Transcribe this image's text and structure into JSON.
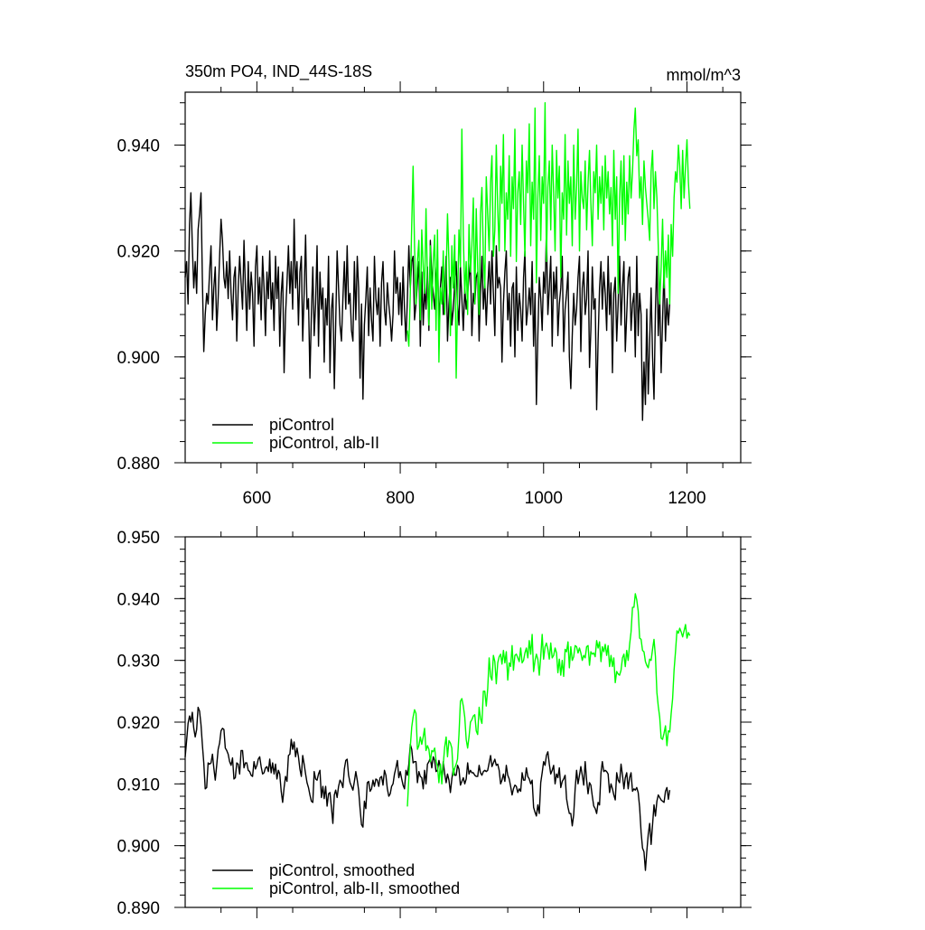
{
  "chart_data": [
    {
      "type": "line",
      "title": "350m PO4, IND_44S-18S",
      "units": "mmol/m^3",
      "xlabel": "",
      "ylabel": "",
      "xlim": [
        500,
        1275
      ],
      "ylim": [
        0.88,
        0.95
      ],
      "xticks": [
        600,
        800,
        1000,
        1200
      ],
      "xtick_labels": [
        "600",
        "800",
        "1000",
        "1200"
      ],
      "yticks": [
        0.88,
        0.9,
        0.92,
        0.94
      ],
      "ytick_labels": [
        "0.880",
        "0.900",
        "0.920",
        "0.940"
      ],
      "grid": false,
      "legend": "bottom-left",
      "series": [
        {
          "name": "piControl",
          "color": "#000000",
          "x_start": 500,
          "x_step": 2,
          "values": [
            0.915,
            0.918,
            0.91,
            0.925,
            0.931,
            0.921,
            0.913,
            0.918,
            0.912,
            0.924,
            0.927,
            0.931,
            0.915,
            0.901,
            0.908,
            0.912,
            0.91,
            0.916,
            0.921,
            0.907,
            0.913,
            0.917,
            0.905,
            0.911,
            0.919,
            0.926,
            0.922,
            0.915,
            0.913,
            0.918,
            0.911,
            0.92,
            0.912,
            0.907,
            0.915,
            0.917,
            0.903,
            0.913,
            0.919,
            0.914,
            0.909,
            0.922,
            0.913,
            0.905,
            0.918,
            0.909,
            0.916,
            0.912,
            0.902,
            0.917,
            0.921,
            0.91,
            0.915,
            0.907,
            0.919,
            0.913,
            0.904,
            0.916,
            0.911,
            0.92,
            0.909,
            0.914,
            0.905,
            0.919,
            0.911,
            0.917,
            0.902,
            0.912,
            0.916,
            0.897,
            0.908,
            0.914,
            0.921,
            0.912,
            0.918,
            0.909,
            0.926,
            0.913,
            0.918,
            0.906,
            0.916,
            0.919,
            0.903,
            0.912,
            0.923,
            0.909,
            0.911,
            0.896,
            0.908,
            0.917,
            0.904,
            0.91,
            0.921,
            0.902,
            0.916,
            0.909,
            0.913,
            0.899,
            0.911,
            0.906,
            0.919,
            0.897,
            0.909,
            0.912,
            0.894,
            0.906,
            0.92,
            0.913,
            0.906,
            0.903,
            0.911,
            0.918,
            0.909,
            0.921,
            0.91,
            0.912,
            0.905,
            0.903,
            0.918,
            0.907,
            0.919,
            0.913,
            0.896,
            0.91,
            0.892,
            0.906,
            0.911,
            0.917,
            0.904,
            0.913,
            0.907,
            0.903,
            0.919,
            0.911,
            0.908,
            0.913,
            0.902,
            0.914,
            0.918,
            0.909,
            0.906,
            0.914,
            0.91,
            0.907,
            0.903,
            0.908,
            0.92,
            0.912,
            0.915,
            0.908,
            0.914,
            0.906,
            0.917,
            0.909,
            0.903,
            0.911,
            0.921,
            0.913,
            0.918,
            0.919,
            0.907,
            0.91,
            0.914,
            0.918,
            0.902,
            0.916,
            0.906,
            0.913,
            0.909,
            0.917,
            0.905,
            0.922,
            0.915,
            0.912,
            0.909,
            0.914,
            0.919,
            0.906,
            0.913,
            0.917,
            0.908,
            0.911,
            0.919,
            0.903,
            0.91,
            0.915,
            0.906,
            0.909,
            0.914,
            0.918,
            0.91,
            0.906,
            0.917,
            0.911,
            0.905,
            0.913,
            0.909,
            0.912,
            0.915,
            0.918,
            0.904,
            0.912,
            0.91,
            0.915,
            0.916,
            0.903,
            0.912,
            0.919,
            0.909,
            0.914,
            0.906,
            0.913,
            0.918,
            0.91,
            0.92,
            0.912,
            0.904,
            0.921,
            0.913,
            0.915,
            0.913,
            0.899,
            0.91,
            0.916,
            0.92,
            0.907,
            0.912,
            0.902,
            0.913,
            0.914,
            0.9,
            0.917,
            0.905,
            0.912,
            0.909,
            0.903,
            0.915,
            0.92,
            0.906,
            0.909,
            0.913,
            0.908,
            0.918,
            0.902,
            0.912,
            0.891,
            0.904,
            0.915,
            0.911,
            0.905,
            0.916,
            0.912,
            0.924,
            0.908,
            0.913,
            0.919,
            0.902,
            0.916,
            0.911,
            0.917,
            0.904,
            0.91,
            0.913,
            0.919,
            0.901,
            0.909,
            0.912,
            0.916,
            0.9,
            0.894,
            0.904,
            0.912,
            0.906,
            0.909,
            0.915,
            0.919,
            0.901,
            0.913,
            0.916,
            0.908,
            0.911,
            0.92,
            0.898,
            0.905,
            0.917,
            0.909,
            0.911,
            0.89,
            0.903,
            0.913,
            0.918,
            0.909,
            0.916,
            0.912,
            0.905,
            0.919,
            0.908,
            0.914,
            0.897,
            0.912,
            0.915,
            0.903,
            0.91,
            0.919,
            0.906,
            0.913,
            0.918,
            0.901,
            0.908,
            0.915,
            0.917,
            0.905,
            0.91,
            0.912,
            0.9,
            0.919,
            0.904,
            0.912,
            0.908,
            0.888,
            0.899,
            0.891,
            0.909,
            0.893,
            0.903,
            0.913,
            0.9,
            0.892,
            0.909,
            0.919,
            0.904,
            0.912,
            0.897,
            0.907,
            0.917,
            0.903,
            0.911,
            0.906,
            0.91
          ]
        },
        {
          "name": "piControl, alb-II",
          "color": "#00ff00",
          "x_start": 810,
          "x_step": 2,
          "values": [
            0.905,
            0.902,
            0.912,
            0.925,
            0.936,
            0.921,
            0.91,
            0.918,
            0.922,
            0.907,
            0.924,
            0.917,
            0.912,
            0.928,
            0.914,
            0.906,
            0.921,
            0.909,
            0.918,
            0.923,
            0.905,
            0.924,
            0.899,
            0.913,
            0.91,
            0.92,
            0.908,
            0.915,
            0.927,
            0.918,
            0.904,
            0.921,
            0.913,
            0.923,
            0.896,
            0.91,
            0.924,
            0.917,
            0.943,
            0.923,
            0.912,
            0.918,
            0.908,
            0.925,
            0.916,
            0.921,
            0.93,
            0.91,
            0.928,
            0.917,
            0.908,
            0.927,
            0.932,
            0.919,
            0.913,
            0.934,
            0.927,
            0.92,
            0.933,
            0.938,
            0.919,
            0.924,
            0.94,
            0.928,
            0.92,
            0.936,
            0.929,
            0.942,
            0.92,
            0.931,
            0.926,
            0.938,
            0.919,
            0.934,
            0.928,
            0.943,
            0.918,
            0.931,
            0.935,
            0.925,
            0.94,
            0.929,
            0.919,
            0.937,
            0.931,
            0.944,
            0.921,
            0.933,
            0.926,
            0.947,
            0.914,
            0.93,
            0.938,
            0.922,
            0.934,
            0.929,
            0.948,
            0.918,
            0.932,
            0.937,
            0.924,
            0.94,
            0.931,
            0.92,
            0.939,
            0.93,
            0.936,
            0.915,
            0.931,
            0.926,
            0.942,
            0.923,
            0.937,
            0.929,
            0.934,
            0.921,
            0.94,
            0.926,
            0.932,
            0.943,
            0.92,
            0.935,
            0.93,
            0.928,
            0.937,
            0.924,
            0.933,
            0.939,
            0.929,
            0.921,
            0.935,
            0.931,
            0.94,
            0.926,
            0.934,
            0.929,
            0.936,
            0.924,
            0.938,
            0.93,
            0.935,
            0.927,
            0.932,
            0.921,
            0.939,
            0.926,
            0.934,
            0.912,
            0.93,
            0.937,
            0.925,
            0.938,
            0.922,
            0.933,
            0.927,
            0.938,
            0.93,
            0.935,
            0.943,
            0.947,
            0.938,
            0.941,
            0.93,
            0.934,
            0.925,
            0.937,
            0.932,
            0.929,
            0.926,
            0.922,
            0.935,
            0.939,
            0.928,
            0.935,
            0.93,
            0.921,
            0.91,
            0.917,
            0.926,
            0.913,
            0.92,
            0.915,
            0.923,
            0.91,
            0.925,
            0.919,
            0.93,
            0.935,
            0.933,
            0.94,
            0.936,
            0.928,
            0.939,
            0.93,
            0.936,
            0.941,
            0.933,
            0.928
          ]
        }
      ]
    },
    {
      "type": "line",
      "title": "",
      "xlabel": "",
      "ylabel": "",
      "xlim": [
        500,
        1275
      ],
      "ylim": [
        0.89,
        0.95
      ],
      "xticks": [
        600,
        800,
        1000,
        1200
      ],
      "xtick_labels": [],
      "yticks": [
        0.89,
        0.9,
        0.91,
        0.92,
        0.93,
        0.94,
        0.95
      ],
      "ytick_labels": [
        "0.890",
        "0.900",
        "0.910",
        "0.920",
        "0.930",
        "0.940",
        "0.950"
      ],
      "grid": false,
      "legend": "bottom-left",
      "smooth_window": 5,
      "series": [
        {
          "name": "piControl, smoothed",
          "color": "#000000",
          "source_series": 0
        },
        {
          "name": "piControl, alb-II, smoothed",
          "color": "#00ff00",
          "source_series": 1
        }
      ]
    }
  ]
}
